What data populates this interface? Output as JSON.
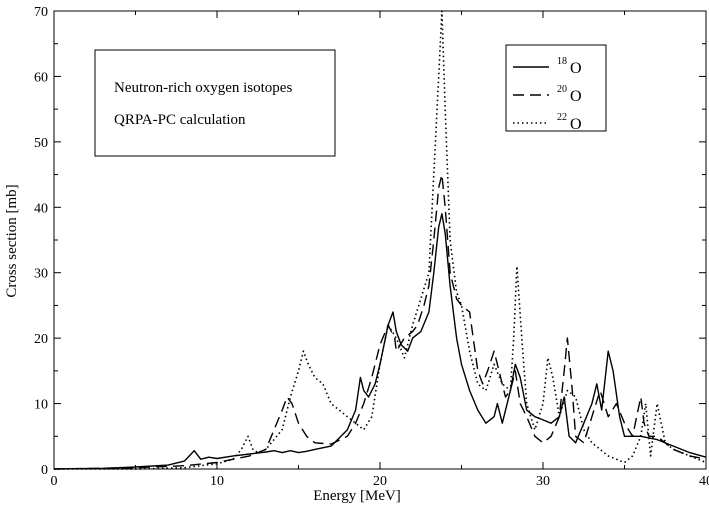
{
  "chart_data": {
    "type": "line",
    "xlabel": "Energy [MeV]",
    "ylabel": "Cross section [mb]",
    "xlim": [
      0,
      40
    ],
    "ylim": [
      0,
      70
    ],
    "xticks": [
      0,
      10,
      20,
      30,
      40
    ],
    "yticks": [
      0,
      10,
      20,
      30,
      40,
      50,
      60,
      70
    ],
    "grid": false,
    "legend_position": "top-right",
    "annotation_lines": [
      "Neutron-rich oxygen isotopes",
      "QRPA-PC calculation"
    ],
    "series": [
      {
        "name": "18O",
        "mass_number": "18",
        "element": "O",
        "line_style": "solid",
        "x": [
          0,
          3,
          5,
          7,
          8,
          8.6,
          9,
          9.5,
          10,
          11,
          12,
          13,
          13.5,
          14,
          14.5,
          15,
          15.5,
          16,
          17,
          18,
          18.5,
          18.8,
          19,
          19.3,
          19.7,
          20,
          20.5,
          20.8,
          21,
          21.3,
          21.7,
          22,
          22.5,
          23,
          23.3,
          23.6,
          23.8,
          24,
          24.3,
          24.7,
          25,
          25.5,
          26,
          26.5,
          27,
          27.2,
          27.5,
          28,
          28.3,
          28.6,
          29,
          29.5,
          30,
          30.5,
          31,
          31.3,
          31.6,
          32,
          32.5,
          33,
          33.3,
          33.6,
          34,
          34.3,
          34.7,
          35,
          35.5,
          36,
          37,
          38,
          39,
          40
        ],
        "y": [
          0,
          0.1,
          0.3,
          0.6,
          1.2,
          2.8,
          1.5,
          1.8,
          1.6,
          2.0,
          2.3,
          2.6,
          2.8,
          2.5,
          2.8,
          2.5,
          2.7,
          3.0,
          3.5,
          6.0,
          9.0,
          14.0,
          12.0,
          11.0,
          13.0,
          16.0,
          22.0,
          24.0,
          21.0,
          19.0,
          18.0,
          20.0,
          21.0,
          24.0,
          30.0,
          37.0,
          39.0,
          36.0,
          28.0,
          20.0,
          16.0,
          12.0,
          9.0,
          7.0,
          8.0,
          10.0,
          7.0,
          12.0,
          16.0,
          14.0,
          9.0,
          8.0,
          7.5,
          7.0,
          8.0,
          11.0,
          5.0,
          4.0,
          7.0,
          10.0,
          13.0,
          9.0,
          18.0,
          15.0,
          8.0,
          5.0,
          5.0,
          5.0,
          4.5,
          3.5,
          2.5,
          1.8
        ]
      },
      {
        "name": "20O",
        "mass_number": "20",
        "element": "O",
        "line_style": "dashed",
        "x": [
          0,
          3,
          5,
          8,
          10,
          11,
          12,
          13,
          13.5,
          14,
          14.3,
          14.6,
          15,
          15.5,
          16,
          17,
          18,
          18.5,
          19,
          19.5,
          20,
          20.5,
          20.9,
          21,
          21.5,
          22,
          22.3,
          22.7,
          23,
          23.3,
          23.6,
          23.8,
          24,
          24.3,
          24.7,
          25,
          25.5,
          26,
          26.3,
          26.6,
          27,
          27.3,
          27.7,
          28,
          28.3,
          28.6,
          29,
          29.5,
          30,
          30.5,
          31,
          31.3,
          31.5,
          31.8,
          32,
          32.5,
          33,
          33.5,
          34,
          34.5,
          35,
          35.5,
          36,
          36.2,
          36.5,
          37,
          38,
          39,
          40
        ],
        "y": [
          0,
          0.1,
          0.2,
          0.5,
          1.0,
          1.5,
          2.0,
          3.0,
          6.0,
          9.0,
          11.0,
          10.0,
          7.0,
          5.0,
          4.0,
          3.8,
          5.0,
          7.0,
          10.0,
          14.0,
          19.0,
          22.0,
          20.0,
          18.0,
          20.0,
          21.0,
          22.0,
          25.0,
          28.0,
          35.0,
          43.0,
          45.0,
          40.0,
          30.0,
          26.0,
          25.0,
          24.0,
          15.0,
          13.0,
          15.0,
          18.0,
          15.0,
          11.0,
          12.0,
          15.0,
          10.0,
          8.0,
          5.0,
          4.0,
          5.0,
          8.0,
          15.0,
          20.0,
          12.0,
          5.0,
          4.0,
          8.0,
          12.0,
          8.0,
          10.0,
          7.0,
          5.0,
          11.0,
          7.0,
          5.0,
          5.0,
          3.0,
          2.0,
          1.5
        ]
      },
      {
        "name": "22O",
        "mass_number": "22",
        "element": "O",
        "line_style": "dotted",
        "x": [
          0,
          5,
          8,
          9,
          10,
          11,
          11.5,
          11.9,
          12.2,
          12.5,
          13,
          14,
          14.5,
          15,
          15.3,
          15.6,
          16,
          16.5,
          17,
          18,
          18.5,
          19,
          19.5,
          20,
          20.5,
          21,
          21.5,
          22,
          22.5,
          23,
          23.3,
          23.6,
          23.8,
          24,
          24.3,
          24.7,
          25,
          25.5,
          26,
          26.5,
          27,
          27.5,
          28,
          28.2,
          28.4,
          28.7,
          29,
          29.5,
          30,
          30.3,
          30.6,
          31,
          31.5,
          32,
          32.5,
          33,
          34,
          35,
          35.5,
          36,
          36.3,
          36.6,
          37,
          37.5,
          38,
          39,
          40
        ],
        "y": [
          0,
          0,
          0.2,
          0.5,
          0.8,
          1.5,
          3.0,
          5.0,
          3.0,
          2.5,
          3.0,
          6.0,
          11.0,
          15.0,
          18.0,
          16.0,
          14.0,
          13.0,
          10.0,
          8.0,
          7.0,
          6.0,
          8.0,
          16.0,
          22.0,
          20.0,
          17.0,
          22.0,
          26.0,
          30.0,
          45.0,
          60.0,
          70.0,
          55.0,
          35.0,
          27.0,
          25.0,
          18.0,
          13.0,
          12.0,
          16.0,
          13.0,
          12.0,
          20.0,
          31.0,
          20.0,
          10.0,
          6.0,
          10.0,
          17.0,
          14.0,
          8.0,
          12.0,
          11.0,
          6.0,
          4.0,
          2.0,
          1.0,
          2.0,
          5.0,
          10.0,
          2.0,
          10.0,
          4.0,
          3.0,
          2.0,
          1.0
        ]
      }
    ]
  }
}
